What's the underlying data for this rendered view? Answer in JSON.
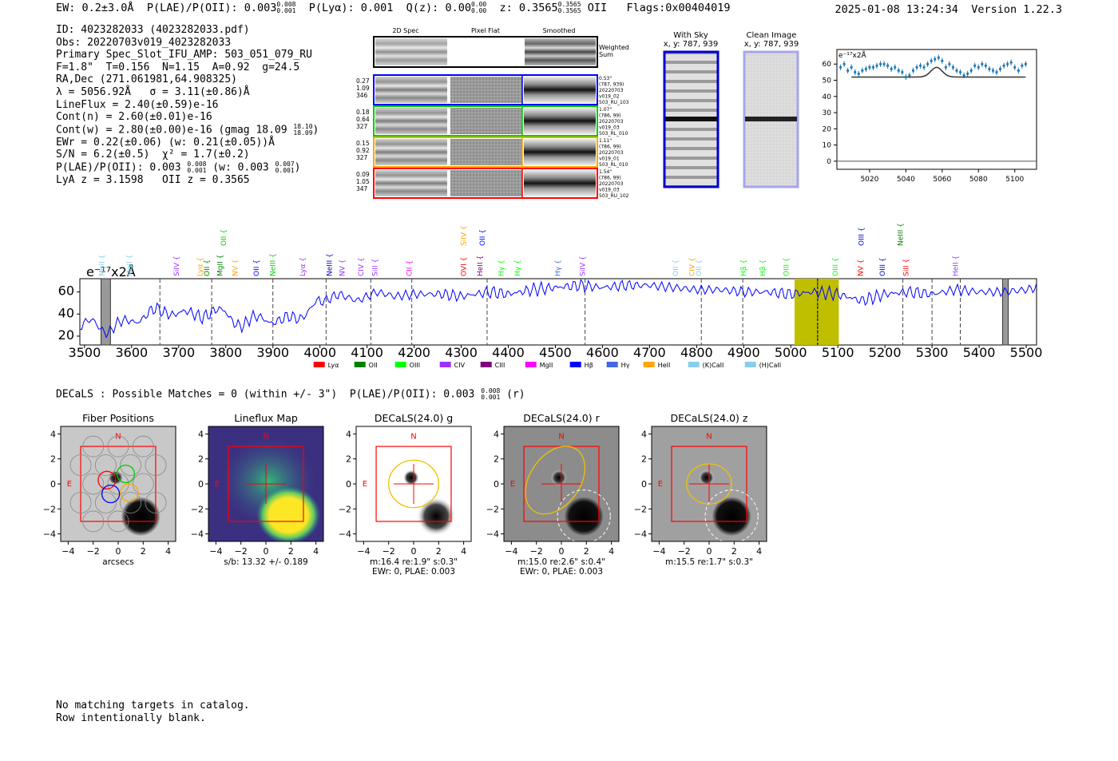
{
  "header": {
    "ew": "EW: 0.2±3.0Å",
    "plae_label": "P(LAE)/P(OII): 0.003",
    "plae_hi": "0.008",
    "plae_lo": "0.001",
    "plya": "P(Lyα): 0.001",
    "qz_label": "Q(z): 0.00",
    "qz_hi": "0.00",
    "qz_lo": "0.00",
    "z_label": "z: 0.3565",
    "z_hi": "0.3565",
    "z_lo": "0.3565",
    "z_line": "OII",
    "flags": "Flags:0x00404019",
    "timestamp": "2025-01-08 13:24:34",
    "version": "Version 1.22.3"
  },
  "info": {
    "id": "ID: 4023282033 (4023282033.pdf)",
    "obs": "Obs: 20220703v019_4023282033",
    "primary": "Primary Spec_Slot_IFU_AMP: 503_051_079_RU",
    "params": "F=1.8\"  T=0.156  N=1.15  A=0.92  g=24.5",
    "radec": "RA,Dec (271.061981,64.908325)",
    "lambda": "λ = 5056.92Å   σ = 3.11(±0.86)Å",
    "lineflux": "LineFlux = 2.40(±0.59)e-16",
    "contn": "Cont(n) = 2.60(±0.01)e-16",
    "contw": "Cont(w) = 2.80(±0.00)e-16 (gmag 18.09",
    "contw_hi": "18.10",
    "contw_lo": "18.09",
    "ewr": "EWr = 0.22(±0.06) (w: 0.21(±0.05))Å",
    "sn": "S/N = 6.2(±0.5)  χ² = 1.7(±0.2)",
    "plae": "P(LAE)/P(OII): 0.003",
    "plae_hi": "0.008",
    "plae_lo": "0.001",
    "plae_w": "(w: 0.003",
    "plae_w_hi": "0.007",
    "plae_w_lo": "0.001",
    "lyaz": "LyA z = 3.1598   OII z = 0.3565"
  },
  "cutouts": {
    "col_2d": "2D Spec",
    "col_flat": "Pixel Flat",
    "col_smooth": "Smoothed",
    "weighted_sum": [
      "Weighted",
      "Sum"
    ],
    "rows": [
      {
        "color": "#0000ff",
        "left": [
          "0.27",
          "1.09",
          "346"
        ],
        "right": [
          "0.53\"",
          "(787, 939)",
          "20220703",
          "v019_02",
          "503_RU_103"
        ]
      },
      {
        "color": "#00cc00",
        "left": [
          "0.18",
          "0.64",
          "327"
        ],
        "right": [
          "1.07\"",
          "(786, 99)",
          "20220703",
          "v019_03",
          "503_RL_010"
        ]
      },
      {
        "color": "#ffa500",
        "left": [
          "0.15",
          "0.92",
          "327"
        ],
        "right": [
          "1.11\"",
          "(786, 99)",
          "20220703",
          "v019_01",
          "503_RL_010"
        ]
      },
      {
        "color": "#ff0000",
        "left": [
          "0.09",
          "1.05",
          "347"
        ],
        "right": [
          "1.54\"",
          "(786, 99)",
          "20220703",
          "v019_03",
          "503_RU_102"
        ]
      }
    ],
    "with_sky": "With Sky",
    "with_sky_xy": "x, y: 787, 939",
    "clean": "Clean Image",
    "clean_xy": "x, y: 787, 939"
  },
  "decals_line": {
    "text": "DECaLS : Possible Matches = 0 (within +/- 3\")  P(LAE)/P(OII): 0.003",
    "hi": "0.008",
    "lo": "0.001",
    "band": "(r)"
  },
  "panels": [
    {
      "title": "Fiber Positions",
      "xlabel": "arcsecs",
      "sub2": ""
    },
    {
      "title": "Lineflux Map",
      "xlabel": "s/b: 13.32 +/- 0.189",
      "sub2": ""
    },
    {
      "title": "DECaLS(24.0) g",
      "xlabel": "m:16.4  re:1.9\"  s:0.3\"",
      "sub2": "EWr: 0, PLAE: 0.003"
    },
    {
      "title": "DECaLS(24.0) r",
      "xlabel": "m:15.0  re:2.6\"  s:0.4\"",
      "sub2": "EWr: 0, PLAE: 0.003"
    },
    {
      "title": "DECaLS(24.0) z",
      "xlabel": "m:15.5  re:1.7\"  s:0.3\"",
      "sub2": ""
    }
  ],
  "panel_labels": {
    "north": "N",
    "east": "E"
  },
  "footer": {
    "line1": "No matching targets in catalog.",
    "line2": "Row intentionally blank."
  },
  "chart_data": [
    {
      "type": "scatter",
      "name": "zoom-spectrum",
      "unit_label": "e⁻¹⁷x2Å",
      "xlim": [
        5002,
        5112
      ],
      "ylim": [
        -5,
        69
      ],
      "xticks": [
        5020,
        5040,
        5060,
        5080,
        5100
      ],
      "yticks": [
        0,
        10,
        20,
        30,
        40,
        50,
        60
      ],
      "data_x": [
        5004,
        5006,
        5008,
        5010,
        5012,
        5014,
        5016,
        5018,
        5020,
        5022,
        5024,
        5026,
        5028,
        5030,
        5032,
        5034,
        5036,
        5038,
        5040,
        5042,
        5044,
        5046,
        5048,
        5050,
        5052,
        5054,
        5056,
        5058,
        5060,
        5062,
        5064,
        5066,
        5068,
        5070,
        5072,
        5074,
        5076,
        5078,
        5080,
        5082,
        5084,
        5086,
        5088,
        5090,
        5092,
        5094,
        5096,
        5098,
        5100,
        5102,
        5104,
        5106
      ],
      "data_y": [
        58,
        60,
        56,
        58,
        55,
        54,
        56,
        57,
        58,
        58,
        59,
        60,
        60,
        59,
        57,
        58,
        56,
        55,
        52,
        53,
        56,
        58,
        59,
        58,
        60,
        62,
        63,
        64,
        62,
        58,
        60,
        58,
        56,
        55,
        53,
        54,
        56,
        59,
        58,
        60,
        59,
        57,
        56,
        55,
        57,
        59,
        60,
        61,
        58,
        56,
        59,
        60
      ],
      "model_baseline": 52,
      "model_peak": 5056.92,
      "model_amp": 6,
      "model_sigma": 3.11,
      "model_range": [
        5010,
        5106
      ]
    },
    {
      "type": "line",
      "name": "full-spectrum",
      "unit_label": "e⁻¹⁷x2Å",
      "xlim": [
        3490,
        5522
      ],
      "ylim": [
        12,
        72
      ],
      "xticks": [
        3500,
        3600,
        3700,
        3800,
        3900,
        4000,
        4100,
        4200,
        4300,
        4400,
        4500,
        4600,
        4700,
        4800,
        4900,
        5000,
        5100,
        5200,
        5300,
        5400,
        5500
      ],
      "yticks": [
        20,
        40,
        60
      ],
      "anchors_x": [
        3490,
        3520,
        3550,
        3580,
        3600,
        3640,
        3680,
        3720,
        3760,
        3800,
        3840,
        3880,
        3920,
        3960,
        4000,
        4040,
        4080,
        4120,
        4160,
        4200,
        4260,
        4300,
        4360,
        4400,
        4450,
        4500,
        4550,
        4600,
        4650,
        4700,
        4750,
        4800,
        4850,
        4900,
        4950,
        5000,
        5050,
        5100,
        5150,
        5200,
        5250,
        5300,
        5350,
        5400,
        5450,
        5500,
        5522
      ],
      "anchors_y": [
        28,
        32,
        26,
        30,
        35,
        40,
        44,
        38,
        42,
        40,
        30,
        38,
        32,
        40,
        50,
        58,
        52,
        60,
        56,
        58,
        58,
        56,
        60,
        58,
        62,
        64,
        66,
        64,
        66,
        66,
        64,
        62,
        62,
        60,
        60,
        58,
        60,
        58,
        52,
        58,
        60,
        58,
        62,
        60,
        60,
        62,
        64
      ],
      "highlight_band": [
        5008,
        5102
      ],
      "peak_line": 5057,
      "hatched_bands": [
        [
          3535,
          3555
        ],
        [
          5450,
          5462
        ]
      ],
      "dashed_lines": [
        3660,
        3770,
        3900,
        4013,
        4108,
        4195,
        4355,
        4563,
        4810,
        4898,
        5057,
        5238,
        5300,
        5360
      ],
      "legend": [
        {
          "label": "Lyα",
          "color": "#ff0000"
        },
        {
          "label": "OII",
          "color": "#008000"
        },
        {
          "label": "OIII",
          "color": "#00ff00"
        },
        {
          "label": "CIV",
          "color": "#9933ff"
        },
        {
          "label": "CIII",
          "color": "#800080"
        },
        {
          "label": "MgII",
          "color": "#ff00ff"
        },
        {
          "label": "Hβ",
          "color": "#0000ff"
        },
        {
          "label": "Hγ",
          "color": "#4169e1"
        },
        {
          "label": "HeII",
          "color": "#ffa500"
        },
        {
          "label": "(K)CaII",
          "color": "#87ceeb"
        },
        {
          "label": "(H)CaII",
          "color": "#87ceeb"
        }
      ],
      "line_labels": [
        {
          "text": "MgII",
          "x": 3542,
          "row": 0,
          "color": "#87ceeb"
        },
        {
          "text": "MgII",
          "x": 3600,
          "row": 0,
          "color": "#87ceeb"
        },
        {
          "text": "SiIV",
          "x": 3700,
          "row": 0,
          "color": "#9933ff"
        },
        {
          "text": "Lyα",
          "x": 3750,
          "row": 0,
          "color": "#ffa500"
        },
        {
          "text": "OII",
          "x": 3765,
          "row": 0,
          "color": "#008000"
        },
        {
          "text": "MgII",
          "x": 3793,
          "row": 0,
          "color": "#008000"
        },
        {
          "text": "OII",
          "x": 3800,
          "row": 2,
          "color": "#00cc00"
        },
        {
          "text": "NV",
          "x": 3825,
          "row": 0,
          "color": "#ffa500"
        },
        {
          "text": "OII",
          "x": 3870,
          "row": 0,
          "color": "#0000ff"
        },
        {
          "text": "NeIII",
          "x": 3905,
          "row": 0,
          "color": "#00cc00"
        },
        {
          "text": "Lyα",
          "x": 3968,
          "row": 0,
          "color": "#9933ff"
        },
        {
          "text": "NeIII",
          "x": 4025,
          "row": 0,
          "color": "#0000cc"
        },
        {
          "text": "NV",
          "x": 4052,
          "row": 0,
          "color": "#9933ff"
        },
        {
          "text": "CIV",
          "x": 4092,
          "row": 0,
          "color": "#9933ff"
        },
        {
          "text": "SiII",
          "x": 4122,
          "row": 0,
          "color": "#9933ff"
        },
        {
          "text": "CII",
          "x": 4195,
          "row": 0,
          "color": "#ff00ff"
        },
        {
          "text": "SiIV",
          "x": 4310,
          "row": 2,
          "color": "#ffa500"
        },
        {
          "text": "OVI",
          "x": 4310,
          "row": 0,
          "color": "#ff0000"
        },
        {
          "text": "OII",
          "x": 4350,
          "row": 2,
          "color": "#0000ff"
        },
        {
          "text": "HeII",
          "x": 4345,
          "row": 0,
          "color": "#800080"
        },
        {
          "text": "Hγ",
          "x": 4390,
          "row": 0,
          "color": "#00ff00"
        },
        {
          "text": "Hγ",
          "x": 4425,
          "row": 0,
          "color": "#00ff00"
        },
        {
          "text": "Hγ",
          "x": 4510,
          "row": 0,
          "color": "#4169e1"
        },
        {
          "text": "SiIV",
          "x": 4563,
          "row": 0,
          "color": "#9933ff"
        },
        {
          "text": "OII",
          "x": 4760,
          "row": 0,
          "color": "#87ceeb"
        },
        {
          "text": "CIV",
          "x": 4795,
          "row": 0,
          "color": "#ffa500"
        },
        {
          "text": "OII",
          "x": 4810,
          "row": 0,
          "color": "#87ceeb"
        },
        {
          "text": "Hβ",
          "x": 4905,
          "row": 0,
          "color": "#00ff00"
        },
        {
          "text": "Hβ",
          "x": 4945,
          "row": 0,
          "color": "#00ff00"
        },
        {
          "text": "OIII",
          "x": 4995,
          "row": 0,
          "color": "#00ff00"
        },
        {
          "text": "OIII",
          "x": 5100,
          "row": 0,
          "color": "#00ff00"
        },
        {
          "text": "OIII",
          "x": 5155,
          "row": 2,
          "color": "#0000cc"
        },
        {
          "text": "NV",
          "x": 5153,
          "row": 0,
          "color": "#ff0000"
        },
        {
          "text": "OIII",
          "x": 5200,
          "row": 0,
          "color": "#0000cc"
        },
        {
          "text": "NeIII",
          "x": 5238,
          "row": 2,
          "color": "#008000"
        },
        {
          "text": "SiII",
          "x": 5250,
          "row": 0,
          "color": "#ff0000"
        },
        {
          "text": "HeII",
          "x": 5355,
          "row": 0,
          "color": "#9933ff"
        }
      ]
    },
    {
      "type": "scatter",
      "name": "cutout-axes",
      "xlim": [
        -4.6,
        4.6
      ],
      "ylim": [
        -4.6,
        4.6
      ],
      "xticks": [
        -4,
        -2,
        0,
        2,
        4
      ],
      "yticks": [
        -4,
        -2,
        0,
        2,
        4
      ],
      "tick_text": [
        "−4",
        "−2",
        "0",
        "2",
        "4"
      ],
      "box_halfwidth": 3
    }
  ]
}
